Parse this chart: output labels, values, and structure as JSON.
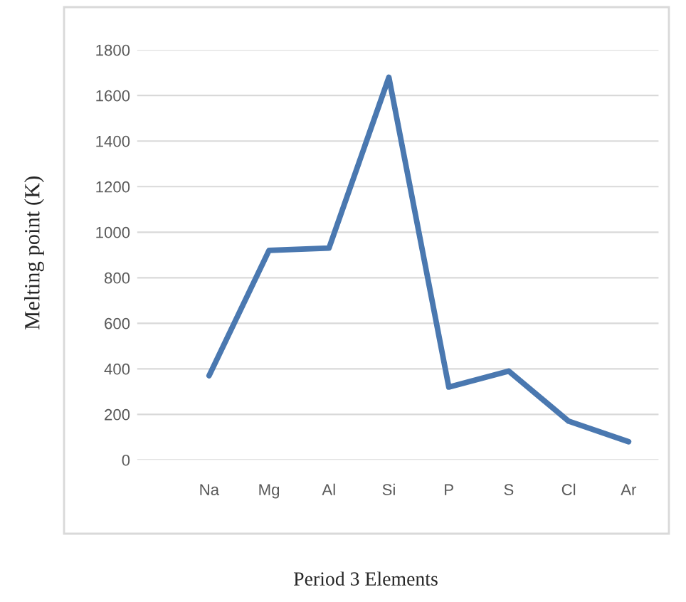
{
  "chart_data": {
    "type": "line",
    "xlabel": "Period 3 Elements",
    "ylabel": "Melting point (K)",
    "categories": [
      "Na",
      "Mg",
      "Al",
      "Si",
      "P",
      "S",
      "Cl",
      "Ar"
    ],
    "series": [
      {
        "color": "#4a78b0",
        "values": [
          370,
          920,
          930,
          1680,
          320,
          390,
          170,
          80
        ]
      }
    ],
    "ylim": [
      0,
      1800
    ],
    "yticks": [
      0,
      200,
      400,
      600,
      800,
      1000,
      1200,
      1400,
      1600,
      1800
    ],
    "grid": "y",
    "marker": "none",
    "line_style": "solid",
    "legend": false
  }
}
